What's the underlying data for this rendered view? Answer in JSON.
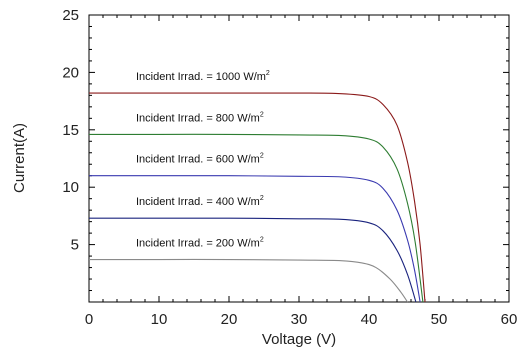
{
  "chart_data": {
    "type": "line",
    "xlabel": "Voltage (V)",
    "ylabel": "Current(A)",
    "xlim": [
      0,
      60
    ],
    "ylim": [
      0,
      25
    ],
    "x_ticks": [
      "0",
      "10",
      "20",
      "30",
      "40",
      "50",
      "60"
    ],
    "y_ticks": [
      "5",
      "10",
      "15",
      "20",
      "25"
    ],
    "grid": false,
    "legend": "none",
    "series": [
      {
        "label_text": "Incident Irrad. = 1000 W/m",
        "label_sup": "2",
        "color": "#8b1a1a",
        "isc": 18.2,
        "voc": 48.0,
        "points": [
          [
            0,
            18.2
          ],
          [
            10,
            18.2
          ],
          [
            20,
            18.2
          ],
          [
            30,
            18.2
          ],
          [
            36,
            18.15
          ],
          [
            40,
            17.9
          ],
          [
            42,
            17.2
          ],
          [
            44,
            15.4
          ],
          [
            45.5,
            12.2
          ],
          [
            46.5,
            8.8
          ],
          [
            47.3,
            5.0
          ],
          [
            48.0,
            0
          ]
        ]
      },
      {
        "label_text": "Incident Irrad. = 800 W/m",
        "label_sup": "2",
        "color": "#2e7d32",
        "isc": 14.6,
        "voc": 47.7,
        "points": [
          [
            0,
            14.6
          ],
          [
            10,
            14.6
          ],
          [
            20,
            14.6
          ],
          [
            30,
            14.55
          ],
          [
            36,
            14.5
          ],
          [
            40,
            14.2
          ],
          [
            42,
            13.5
          ],
          [
            44,
            11.6
          ],
          [
            45.5,
            8.6
          ],
          [
            46.6,
            5.2
          ],
          [
            47.7,
            0
          ]
        ]
      },
      {
        "label_text": "Incident Irrad. = 600 W/m",
        "label_sup": "2",
        "color": "#3a3ab0",
        "isc": 11.0,
        "voc": 47.3,
        "points": [
          [
            0,
            11.0
          ],
          [
            10,
            11.0
          ],
          [
            20,
            11.0
          ],
          [
            30,
            10.95
          ],
          [
            36,
            10.9
          ],
          [
            40,
            10.6
          ],
          [
            42,
            9.9
          ],
          [
            44,
            8.0
          ],
          [
            45.5,
            5.4
          ],
          [
            46.5,
            2.8
          ],
          [
            47.3,
            0
          ]
        ]
      },
      {
        "label_text": "Incident Irrad. = 400 W/m",
        "label_sup": "2",
        "color": "#1a237e",
        "isc": 7.3,
        "voc": 46.7,
        "points": [
          [
            0,
            7.3
          ],
          [
            10,
            7.3
          ],
          [
            20,
            7.3
          ],
          [
            30,
            7.25
          ],
          [
            36,
            7.2
          ],
          [
            40,
            6.9
          ],
          [
            42,
            6.2
          ],
          [
            44,
            4.5
          ],
          [
            45.5,
            2.4
          ],
          [
            46.7,
            0
          ]
        ]
      },
      {
        "label_text": "Incident Irrad. = 200 W/m",
        "label_sup": "2",
        "color": "#8a8a8a",
        "isc": 3.7,
        "voc": 45.5,
        "points": [
          [
            0,
            3.7
          ],
          [
            10,
            3.7
          ],
          [
            20,
            3.7
          ],
          [
            30,
            3.65
          ],
          [
            36,
            3.6
          ],
          [
            39,
            3.4
          ],
          [
            41,
            3.0
          ],
          [
            43,
            2.0
          ],
          [
            44.5,
            0.9
          ],
          [
            45.5,
            0
          ]
        ]
      }
    ]
  }
}
